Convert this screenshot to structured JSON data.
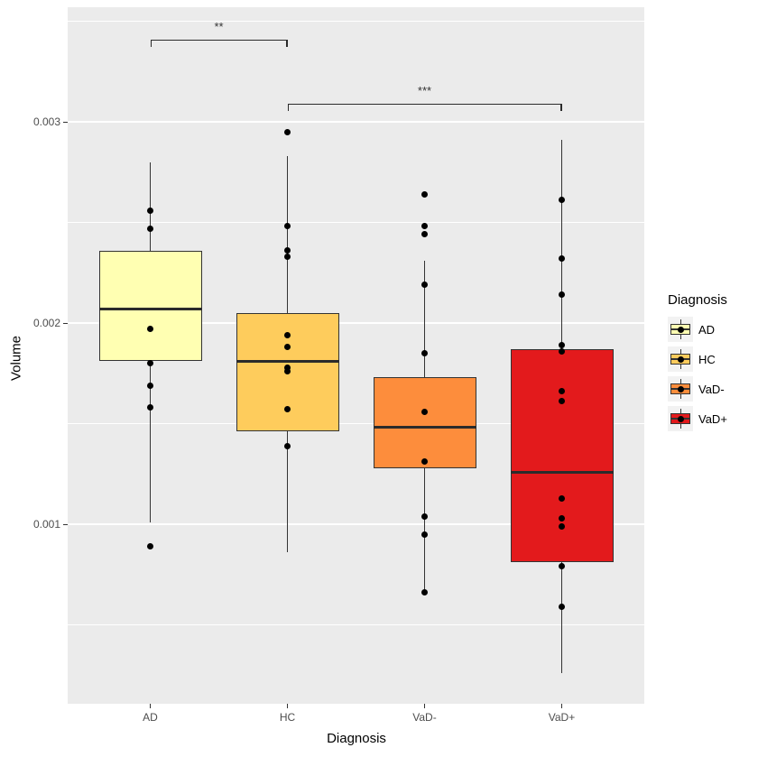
{
  "chart_data": {
    "type": "boxplot",
    "title": "",
    "xlabel": "Diagnosis",
    "ylabel": "Volume",
    "categories": [
      "AD",
      "HC",
      "VaD-",
      "VaD+"
    ],
    "ylim": [
      0.0001,
      0.00357
    ],
    "grid": "on",
    "legend_position": "right",
    "yticks": [
      {
        "label": "0.001",
        "value": 0.001
      },
      {
        "label": "0.002",
        "value": 0.002
      },
      {
        "label": "0.003",
        "value": 0.003
      }
    ],
    "minor_gridlines": [
      0.0005,
      0.0015,
      0.0025,
      0.0035
    ],
    "series": [
      {
        "name": "AD",
        "color": "#FFFFB2",
        "whisker_low": 0.00101,
        "q1": 0.00181,
        "median": 0.00207,
        "q3": 0.00236,
        "whisker_high": 0.0028,
        "points": [
          0.00256,
          0.00247,
          0.00197,
          0.0018,
          0.00169,
          0.00158,
          0.00089
        ]
      },
      {
        "name": "HC",
        "color": "#FECC5C",
        "whisker_low": 0.00086,
        "q1": 0.00146,
        "median": 0.00181,
        "q3": 0.00205,
        "whisker_high": 0.00283,
        "points": [
          0.00295,
          0.00248,
          0.00236,
          0.00233,
          0.00194,
          0.00188,
          0.00178,
          0.00176,
          0.00157,
          0.00139
        ]
      },
      {
        "name": "VaD-",
        "color": "#FD8D3C",
        "whisker_low": 0.00066,
        "q1": 0.00128,
        "median": 0.00148,
        "q3": 0.00173,
        "whisker_high": 0.00231,
        "points": [
          0.00264,
          0.00248,
          0.00244,
          0.00219,
          0.00185,
          0.00156,
          0.00131,
          0.00104,
          0.00095,
          0.00066
        ]
      },
      {
        "name": "VaD+",
        "color": "#E31A1C",
        "whisker_low": 0.00026,
        "q1": 0.00081,
        "median": 0.00126,
        "q3": 0.00187,
        "whisker_high": 0.00291,
        "points": [
          0.00261,
          0.00232,
          0.00214,
          0.00189,
          0.00186,
          0.00166,
          0.00161,
          0.00113,
          0.00103,
          0.00099,
          0.00079,
          0.00059
        ]
      }
    ],
    "annotations": [
      {
        "label": "**",
        "from": "AD",
        "to": "HC",
        "y": 0.00341
      },
      {
        "label": "***",
        "from": "HC",
        "to": "VaD+",
        "y": 0.00309
      }
    ]
  },
  "axes": {
    "x_title": "Diagnosis",
    "y_title": "Volume"
  },
  "legend": {
    "title": "Diagnosis",
    "items": [
      {
        "label": "AD",
        "color": "#FFFFB2"
      },
      {
        "label": "HC",
        "color": "#FECC5C"
      },
      {
        "label": "VaD-",
        "color": "#FD8D3C"
      },
      {
        "label": "VaD+",
        "color": "#E31A1C"
      }
    ]
  },
  "colors": {
    "panel_bg": "#EBEBEB",
    "grid": "#FFFFFF",
    "box_border": "#333333",
    "point": "#000000",
    "tick_text": "#4D4D4D",
    "legend_key_bg": "#F2F2F2"
  }
}
